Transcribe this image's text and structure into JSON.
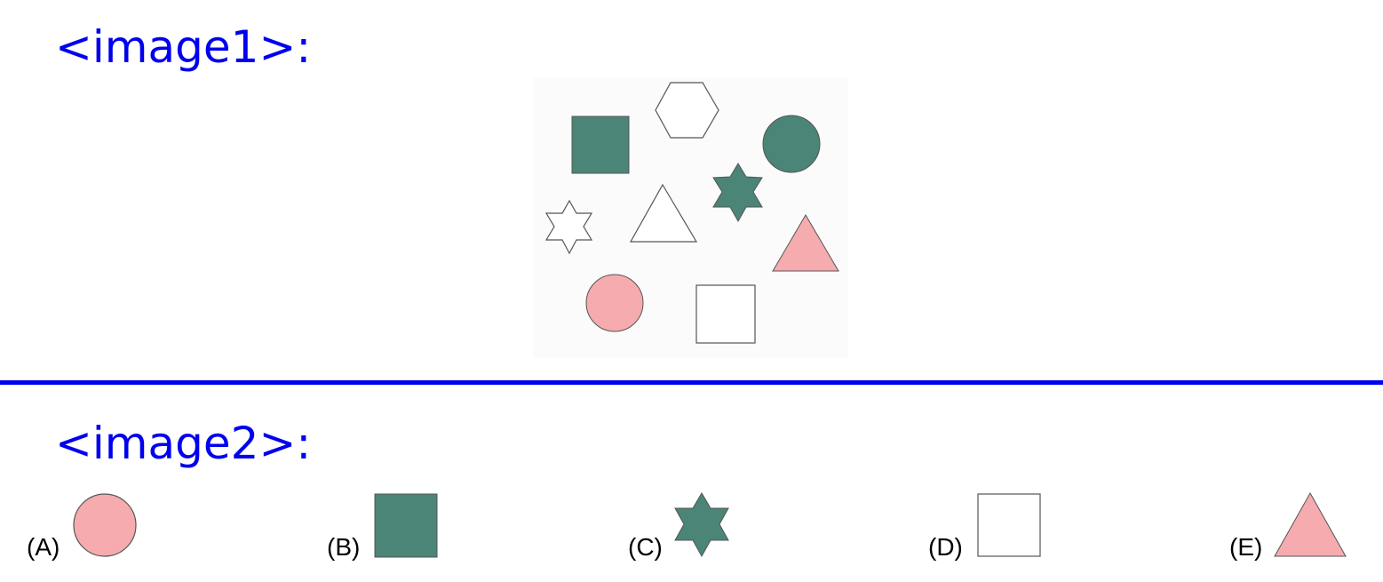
{
  "labels": {
    "image1": "<image1>:",
    "image2": "<image2>:"
  },
  "colors": {
    "label_text": "#0000ee",
    "divider": "#0000ee",
    "teal": "#4a8577",
    "pink": "#f6abae",
    "outline": "#555555",
    "white": "#ffffff"
  },
  "image1_shapes": [
    {
      "shape": "square",
      "fill": "teal"
    },
    {
      "shape": "hexagon",
      "fill": "white"
    },
    {
      "shape": "circle",
      "fill": "teal"
    },
    {
      "shape": "six-point-star",
      "fill": "teal"
    },
    {
      "shape": "six-point-star",
      "fill": "white"
    },
    {
      "shape": "triangle",
      "fill": "white"
    },
    {
      "shape": "triangle",
      "fill": "pink"
    },
    {
      "shape": "circle",
      "fill": "pink"
    },
    {
      "shape": "square",
      "fill": "white"
    }
  ],
  "options": [
    {
      "label": "(A)",
      "shape": "circle",
      "fill": "pink"
    },
    {
      "label": "(B)",
      "shape": "square",
      "fill": "teal"
    },
    {
      "label": "(C)",
      "shape": "six-point-star",
      "fill": "teal"
    },
    {
      "label": "(D)",
      "shape": "square",
      "fill": "white"
    },
    {
      "label": "(E)",
      "shape": "triangle",
      "fill": "pink"
    }
  ]
}
